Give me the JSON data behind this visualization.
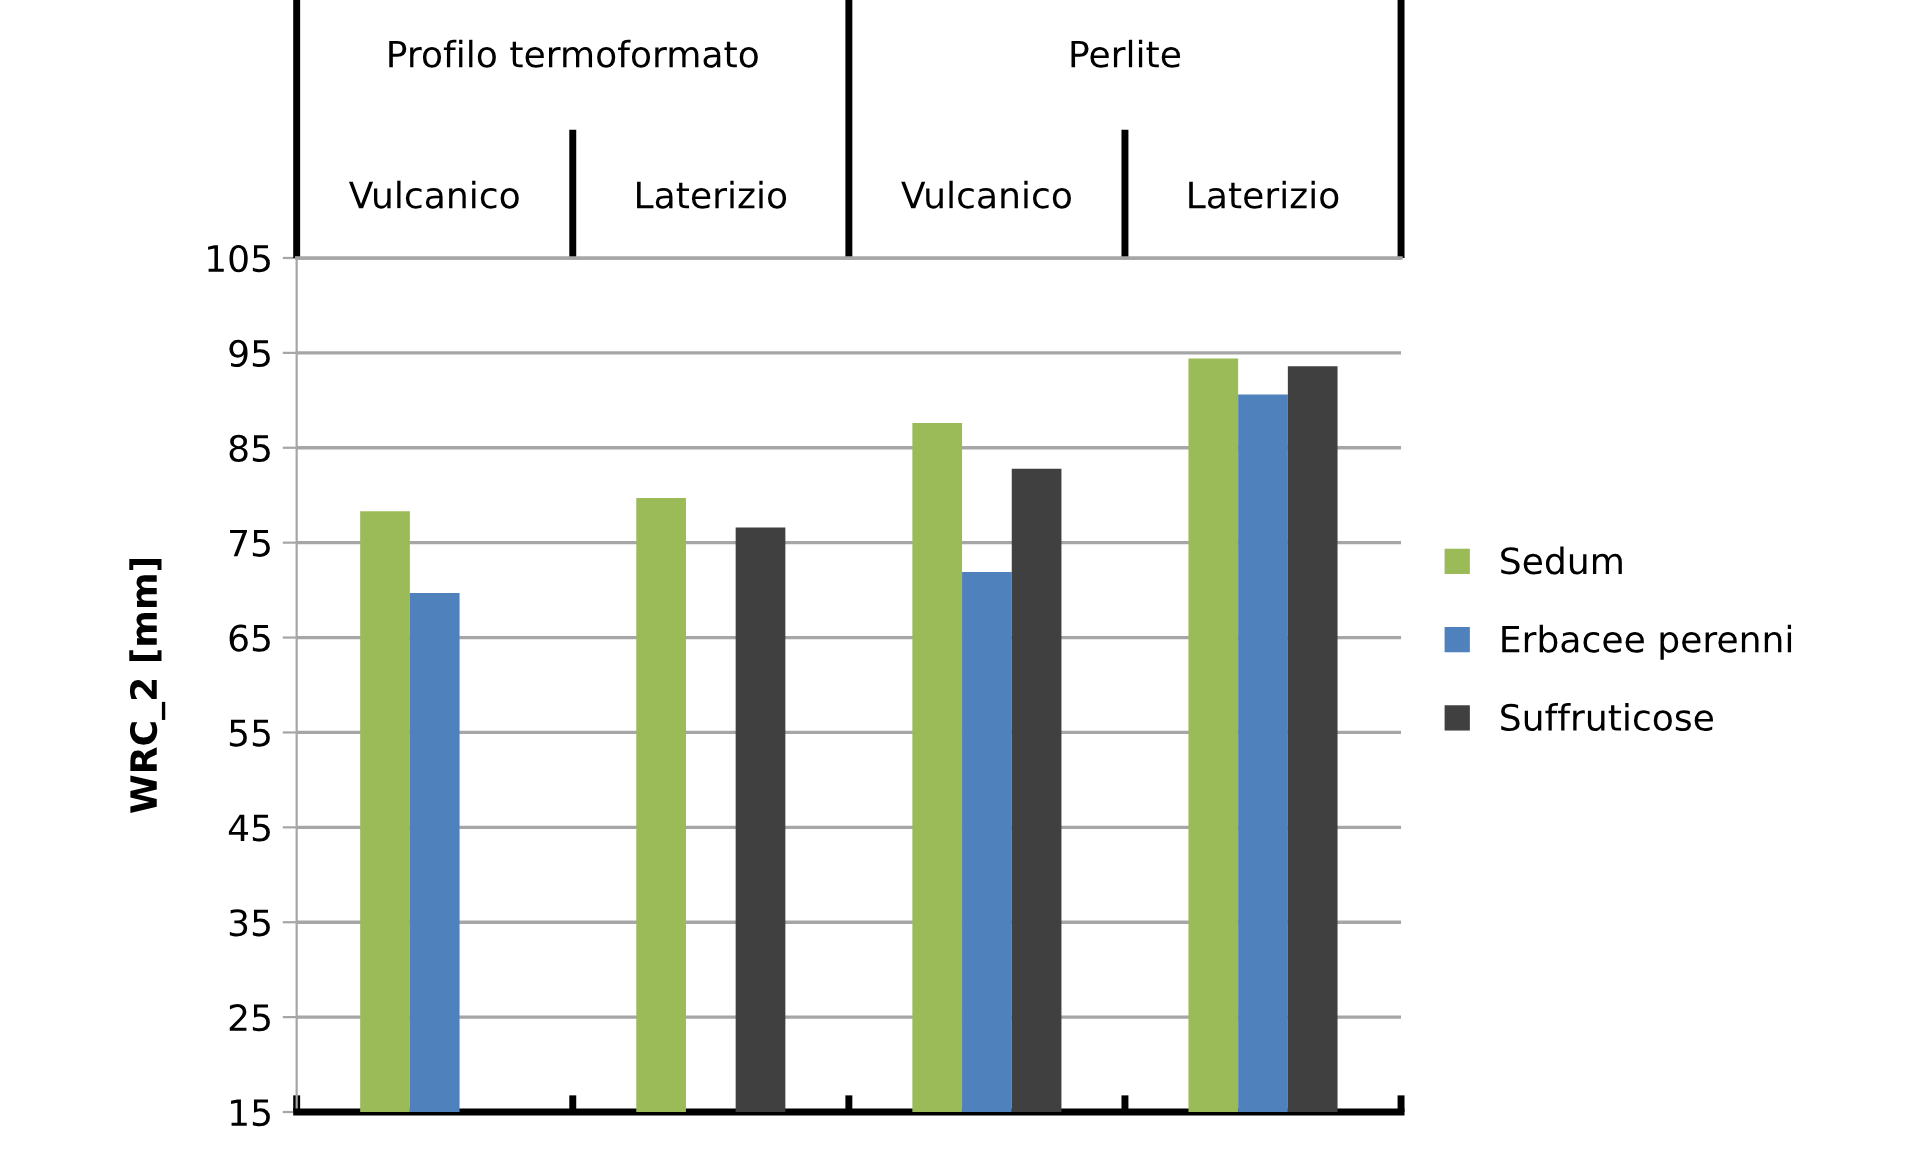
{
  "chart_data": {
    "type": "bar",
    "ylabel": "WRC_2 [mm]",
    "categories": [
      "Vulcanico",
      "Laterizio",
      "Vulcanico",
      "Laterizio"
    ],
    "annotations": [
      "Profilo termoformato",
      "Perlite"
    ],
    "series": [
      {
        "name": "Sedum",
        "color": "#9bbb59",
        "values": [
          78.3,
          79.7,
          87.6,
          94.4
        ]
      },
      {
        "name": "Erbacee perenni",
        "color": "#4f81bd",
        "values": [
          69.7,
          null,
          71.9,
          90.6
        ]
      },
      {
        "name": "Suffruticose",
        "color": "#404040",
        "values": [
          null,
          76.6,
          82.8,
          93.6
        ]
      }
    ],
    "ylim": [
      15,
      105
    ],
    "yticks": [
      15,
      25,
      35,
      45,
      55,
      65,
      75,
      85,
      95,
      105
    ],
    "grid": "y",
    "legend": "right"
  }
}
